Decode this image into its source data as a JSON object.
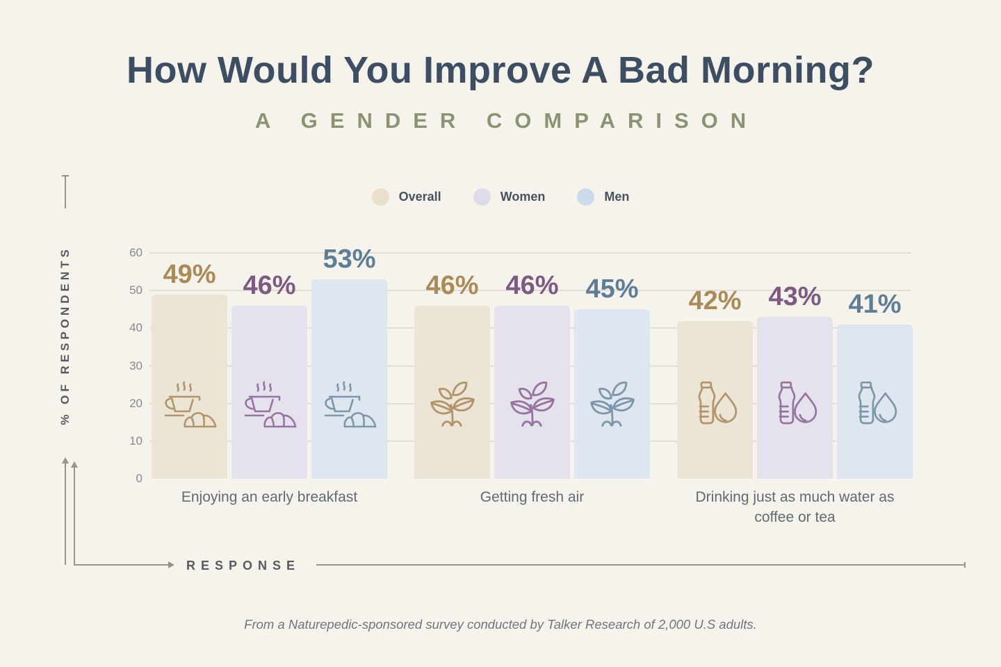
{
  "title": "How Would You Improve A Bad Morning?",
  "subtitle": "A GENDER COMPARISON",
  "legend": {
    "items": [
      {
        "label": "Overall",
        "color": "#e9dfcc"
      },
      {
        "label": "Women",
        "color": "#dedbeb"
      },
      {
        "label": "Men",
        "color": "#cbdbea"
      }
    ]
  },
  "axes": {
    "y_label": "% OF RESPONDENTS",
    "x_label": "RESPONSE"
  },
  "footer": "From a Naturepedic-sponsored survey conducted by Talker Research of 2,000 U.S adults.",
  "chart_data": {
    "type": "bar",
    "title": "How Would You Improve A Bad Morning?",
    "subtitle": "A Gender Comparison",
    "categories": [
      "Enjoying an early breakfast",
      "Getting fresh air",
      "Drinking just as much water as coffee or tea"
    ],
    "category_icons": [
      "coffee-and-croissant-icon",
      "plant-sprout-icon",
      "water-bottle-and-drop-icon"
    ],
    "series": [
      {
        "name": "Overall",
        "values": [
          49,
          46,
          42
        ],
        "bar_color": "#ece4d4",
        "label_color": "#aa8a57",
        "icon_color": "#b2946c"
      },
      {
        "name": "Women",
        "values": [
          46,
          46,
          43
        ],
        "bar_color": "#e5e2ee",
        "label_color": "#7d5a82",
        "icon_color": "#97749f"
      },
      {
        "name": "Men",
        "values": [
          53,
          45,
          41
        ],
        "bar_color": "#dee6ef",
        "label_color": "#5e7e95",
        "icon_color": "#7e96aa"
      }
    ],
    "value_suffix": "%",
    "ylabel": "% OF RESPONDENTS",
    "xlabel": "RESPONSE",
    "ylim": [
      0,
      60
    ],
    "yticks": [
      0,
      10,
      20,
      30,
      40,
      50,
      60
    ],
    "grid": true,
    "legend_position": "top-center"
  }
}
